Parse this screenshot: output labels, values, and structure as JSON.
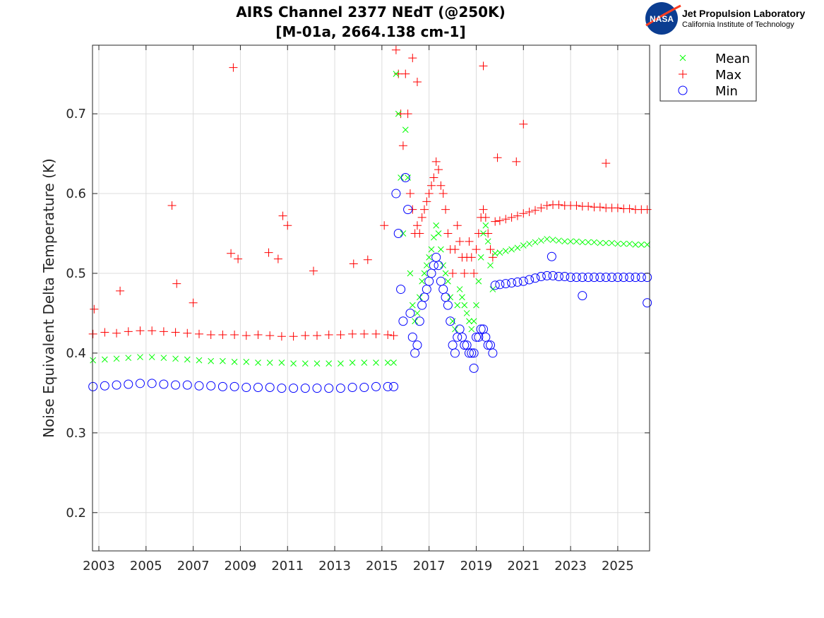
{
  "chart_data": {
    "type": "scatter",
    "title": [
      "AIRS Channel 2377 NEdT (@250K)",
      "[M-01a, 2664.138 cm-1]"
    ],
    "xlabel": "",
    "ylabel": "Noise Equivalent Delta Temperature (K)",
    "xlim": [
      2002.73,
      2026.35
    ],
    "ylim": [
      0.152,
      0.786
    ],
    "xticks": [
      2003,
      2005,
      2007,
      2009,
      2011,
      2013,
      2015,
      2017,
      2019,
      2021,
      2023,
      2025
    ],
    "yticks": [
      0.2,
      0.3,
      0.4,
      0.5,
      0.6,
      0.7
    ],
    "grid": true,
    "legend_placement": "outside-top-right",
    "x": [
      2002.75,
      2003.25,
      2003.75,
      2004.25,
      2004.75,
      2005.25,
      2005.75,
      2006.25,
      2006.75,
      2007.25,
      2007.75,
      2008.25,
      2008.75,
      2009.25,
      2009.75,
      2010.25,
      2010.75,
      2011.25,
      2011.75,
      2012.25,
      2012.75,
      2013.25,
      2013.75,
      2014.25,
      2014.75,
      2015.25,
      2015.5,
      2015.6,
      2015.7,
      2015.8,
      2015.9,
      2016.0,
      2016.1,
      2016.2,
      2016.3,
      2016.4,
      2016.5,
      2016.6,
      2016.7,
      2016.8,
      2016.9,
      2017.0,
      2017.1,
      2017.2,
      2017.3,
      2017.4,
      2017.5,
      2017.6,
      2017.7,
      2017.8,
      2017.9,
      2018.0,
      2018.1,
      2018.2,
      2018.3,
      2018.4,
      2018.5,
      2018.6,
      2018.7,
      2018.8,
      2018.9,
      2019.0,
      2019.1,
      2019.2,
      2019.3,
      2019.4,
      2019.5,
      2019.6,
      2019.7,
      2019.8,
      2020.0,
      2020.25,
      2020.5,
      2020.75,
      2021.0,
      2021.25,
      2021.5,
      2021.75,
      2022.0,
      2022.25,
      2022.5,
      2022.75,
      2023.0,
      2023.25,
      2023.5,
      2023.75,
      2024.0,
      2024.25,
      2024.5,
      2024.75,
      2025.0,
      2025.25,
      2025.5,
      2025.75,
      2026.0,
      2026.25
    ],
    "series": [
      {
        "name": "Mean",
        "marker": "x",
        "color": "#00ff00",
        "values": [
          0.391,
          0.392,
          0.393,
          0.394,
          0.395,
          0.395,
          0.394,
          0.393,
          0.392,
          0.391,
          0.39,
          0.39,
          0.389,
          0.389,
          0.388,
          0.388,
          0.388,
          0.387,
          0.387,
          0.387,
          0.387,
          0.387,
          0.388,
          0.388,
          0.388,
          0.388,
          0.388,
          0.75,
          0.7,
          0.62,
          0.55,
          0.68,
          0.62,
          0.5,
          0.46,
          0.44,
          0.45,
          0.47,
          0.49,
          0.5,
          0.51,
          0.52,
          0.53,
          0.545,
          0.56,
          0.55,
          0.53,
          0.51,
          0.5,
          0.49,
          0.47,
          0.44,
          0.43,
          0.46,
          0.48,
          0.47,
          0.46,
          0.45,
          0.44,
          0.43,
          0.44,
          0.46,
          0.49,
          0.52,
          0.55,
          0.56,
          0.54,
          0.51,
          0.48,
          0.525,
          0.526,
          0.528,
          0.53,
          0.532,
          0.535,
          0.537,
          0.539,
          0.541,
          0.543,
          0.542,
          0.541,
          0.54,
          0.54,
          0.54,
          0.539,
          0.539,
          0.539,
          0.538,
          0.538,
          0.538,
          0.537,
          0.537,
          0.537,
          0.536,
          0.536,
          0.536
        ]
      },
      {
        "name": "Max",
        "marker": "+",
        "color": "#ff0000",
        "values": [
          0.424,
          0.426,
          0.425,
          0.427,
          0.428,
          0.428,
          0.427,
          0.426,
          0.425,
          0.424,
          0.423,
          0.423,
          0.423,
          0.422,
          0.423,
          0.422,
          0.421,
          0.421,
          0.422,
          0.422,
          0.423,
          0.423,
          0.424,
          0.424,
          0.424,
          0.423,
          0.422,
          0.78,
          0.75,
          0.7,
          0.66,
          0.75,
          0.7,
          0.6,
          0.58,
          0.55,
          0.56,
          0.55,
          0.57,
          0.58,
          0.59,
          0.6,
          0.61,
          0.62,
          0.64,
          0.63,
          0.61,
          0.6,
          0.58,
          0.55,
          0.53,
          0.5,
          0.53,
          0.56,
          0.54,
          0.52,
          0.5,
          0.52,
          0.54,
          0.52,
          0.5,
          0.53,
          0.55,
          0.57,
          0.58,
          0.57,
          0.55,
          0.53,
          0.52,
          0.565,
          0.566,
          0.568,
          0.57,
          0.572,
          0.575,
          0.577,
          0.579,
          0.582,
          0.585,
          0.586,
          0.586,
          0.585,
          0.585,
          0.585,
          0.584,
          0.584,
          0.583,
          0.583,
          0.582,
          0.582,
          0.582,
          0.581,
          0.581,
          0.58,
          0.58,
          0.58
        ]
      },
      {
        "name": "Min",
        "marker": "o",
        "color": "#0000ff",
        "values": [
          0.358,
          0.359,
          0.36,
          0.361,
          0.362,
          0.362,
          0.361,
          0.36,
          0.36,
          0.359,
          0.359,
          0.358,
          0.358,
          0.357,
          0.357,
          0.357,
          0.356,
          0.356,
          0.356,
          0.356,
          0.356,
          0.356,
          0.357,
          0.357,
          0.358,
          0.358,
          0.358,
          0.6,
          0.55,
          0.48,
          0.44,
          0.62,
          0.58,
          0.45,
          0.42,
          0.4,
          0.41,
          0.44,
          0.46,
          0.47,
          0.48,
          0.49,
          0.5,
          0.51,
          0.52,
          0.51,
          0.49,
          0.48,
          0.47,
          0.46,
          0.44,
          0.41,
          0.4,
          0.42,
          0.43,
          0.42,
          0.41,
          0.41,
          0.4,
          0.4,
          0.4,
          0.42,
          0.42,
          0.43,
          0.43,
          0.42,
          0.41,
          0.41,
          0.4,
          0.485,
          0.486,
          0.487,
          0.488,
          0.489,
          0.49,
          0.492,
          0.494,
          0.496,
          0.497,
          0.497,
          0.496,
          0.496,
          0.495,
          0.495,
          0.495,
          0.495,
          0.495,
          0.495,
          0.495,
          0.495,
          0.495,
          0.495,
          0.495,
          0.495,
          0.495,
          0.495
        ]
      }
    ],
    "outliers": {
      "Max": [
        [
          2002.8,
          0.455
        ],
        [
          2003.9,
          0.478
        ],
        [
          2006.1,
          0.585
        ],
        [
          2006.3,
          0.487
        ],
        [
          2007.0,
          0.463
        ],
        [
          2008.6,
          0.525
        ],
        [
          2008.7,
          0.758
        ],
        [
          2008.9,
          0.518
        ],
        [
          2010.2,
          0.526
        ],
        [
          2010.6,
          0.518
        ],
        [
          2010.8,
          0.572
        ],
        [
          2011.0,
          0.56
        ],
        [
          2012.1,
          0.503
        ],
        [
          2013.8,
          0.512
        ],
        [
          2014.4,
          0.517
        ],
        [
          2015.1,
          0.56
        ],
        [
          2016.3,
          0.77
        ],
        [
          2016.5,
          0.74
        ],
        [
          2019.3,
          0.76
        ],
        [
          2019.9,
          0.645
        ],
        [
          2020.7,
          0.64
        ],
        [
          2021.0,
          0.687
        ],
        [
          2024.5,
          0.638
        ]
      ],
      "Min": [
        [
          2018.9,
          0.381
        ],
        [
          2022.2,
          0.521
        ],
        [
          2023.5,
          0.472
        ],
        [
          2026.25,
          0.463
        ]
      ]
    }
  },
  "logo": {
    "agency": "NASA",
    "lab": "Jet Propulsion Laboratory",
    "institute": "California Institute of Technology"
  }
}
